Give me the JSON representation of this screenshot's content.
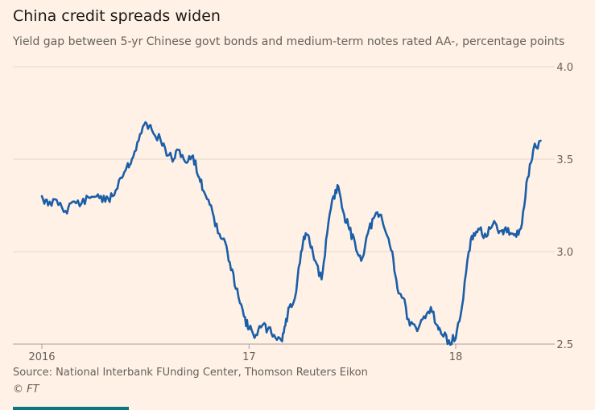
{
  "chart_data": {
    "type": "line",
    "title": "China credit spreads widen",
    "subtitle": "Yield gap between 5-yr Chinese govt bonds and medium-term notes rated AA-, percentage points",
    "xlabel": "",
    "ylabel": "",
    "ylim": [
      2.5,
      4.0
    ],
    "xlim": [
      "2016-01-01",
      "2018-05-31"
    ],
    "y_ticks": [
      {
        "value": 4.0,
        "label": "4.0"
      },
      {
        "value": 3.5,
        "label": "3.5"
      },
      {
        "value": 3.0,
        "label": "3.0"
      },
      {
        "value": 2.5,
        "label": "2.5"
      }
    ],
    "x_ticks": [
      {
        "value": "2016-01-01",
        "label": "2016"
      },
      {
        "value": "2017-01-01",
        "label": "17"
      },
      {
        "value": "2018-01-01",
        "label": "18"
      }
    ],
    "grid": "horizontal",
    "y_axis_position": "right",
    "series": [
      {
        "color": "#1b5ea8",
        "x": [
          "2016-01-01",
          "2016-01-12",
          "2016-01-27",
          "2016-02-12",
          "2016-02-24",
          "2016-03-11",
          "2016-03-26",
          "2016-04-09",
          "2016-04-22",
          "2016-05-05",
          "2016-05-19",
          "2016-05-30",
          "2016-06-08",
          "2016-06-20",
          "2016-07-02",
          "2016-07-13",
          "2016-07-29",
          "2016-08-11",
          "2016-08-21",
          "2016-08-31",
          "2016-09-13",
          "2016-09-24",
          "2016-10-05",
          "2016-10-14",
          "2016-10-26",
          "2016-11-07",
          "2016-11-20",
          "2016-11-30",
          "2016-12-11",
          "2016-12-23",
          "2017-01-01",
          "2017-01-13",
          "2017-01-24",
          "2017-02-03",
          "2017-02-14",
          "2017-02-27",
          "2017-03-06",
          "2017-03-13",
          "2017-03-23",
          "2017-04-03",
          "2017-04-11",
          "2017-04-18",
          "2017-04-28",
          "2017-05-09",
          "2017-05-19",
          "2017-05-30",
          "2017-06-08",
          "2017-06-18",
          "2017-06-27",
          "2017-07-07",
          "2017-07-18",
          "2017-07-30",
          "2017-08-09",
          "2017-08-20",
          "2017-08-31",
          "2017-09-11",
          "2017-09-20",
          "2017-09-30",
          "2017-10-12",
          "2017-10-25",
          "2017-11-06",
          "2017-11-18",
          "2017-11-30",
          "2017-12-08",
          "2017-12-20",
          "2018-01-01",
          "2018-01-12",
          "2018-01-24",
          "2018-02-02",
          "2018-02-12",
          "2018-02-24",
          "2018-03-08",
          "2018-03-18",
          "2018-03-28",
          "2018-04-08",
          "2018-04-18",
          "2018-04-28",
          "2018-05-08",
          "2018-05-18",
          "2018-05-31"
        ],
        "y": [
          3.3,
          3.25,
          3.28,
          3.22,
          3.27,
          3.26,
          3.29,
          3.31,
          3.27,
          3.3,
          3.4,
          3.46,
          3.5,
          3.6,
          3.7,
          3.66,
          3.6,
          3.52,
          3.5,
          3.55,
          3.48,
          3.52,
          3.4,
          3.32,
          3.25,
          3.1,
          3.05,
          2.9,
          2.8,
          2.65,
          2.58,
          2.55,
          2.6,
          2.58,
          2.55,
          2.52,
          2.6,
          2.7,
          2.75,
          3.0,
          3.1,
          3.05,
          2.95,
          2.85,
          3.1,
          3.3,
          3.35,
          3.2,
          3.12,
          3.05,
          2.95,
          3.1,
          3.18,
          3.2,
          3.1,
          3.0,
          2.8,
          2.75,
          2.6,
          2.57,
          2.65,
          2.7,
          2.6,
          2.55,
          2.52,
          2.53,
          2.7,
          3.0,
          3.1,
          3.12,
          3.08,
          3.15,
          3.1,
          3.12,
          3.1,
          3.08,
          3.15,
          3.4,
          3.55,
          3.6
        ]
      }
    ]
  },
  "footer": {
    "source": "Source: National Interbank FUnding Center, Thomson Reuters Eikon",
    "credit": "© FT"
  },
  "colors": {
    "background": "#fff1e5",
    "line": "#1b5ea8",
    "grid": "#e3d6cb",
    "brand_bar": "#0d7680"
  }
}
